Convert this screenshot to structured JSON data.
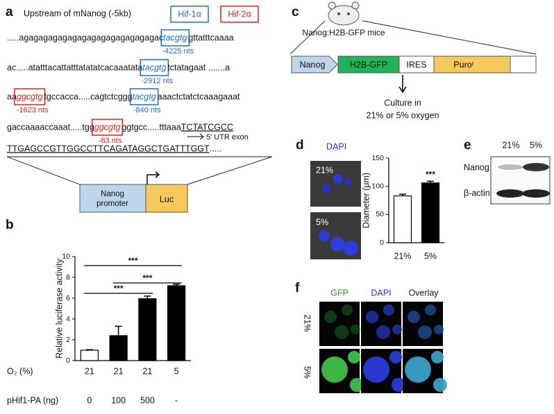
{
  "a": {
    "label": "a",
    "title": "Upstream of mNanog (-5kb)",
    "legend": [
      {
        "name": "Hif-1α",
        "color": "#1f6fc0"
      },
      {
        "name": "Hif-2α",
        "color": "#e02020"
      }
    ],
    "sequence": [
      [
        {
          "text": ".....agagagagagagagagagagagagagagac"
        },
        {
          "text": "tacgtg",
          "site": 0,
          "note": "-4225 nts"
        },
        {
          "text": "gttatttcaaaa"
        }
      ],
      [
        {
          "text": "ac.....atatttacattatttatatatcacaaatata"
        },
        {
          "text": "tacgtg",
          "site": 0,
          "note": "-2912 nts"
        },
        {
          "text": "tctatagaat .......a"
        }
      ],
      [
        {
          "text": "aa"
        },
        {
          "text": "ggcgtg",
          "site": 1,
          "note": "-1623 nts"
        },
        {
          "text": "tgccacca.....cagtctcggg"
        },
        {
          "text": "tacgtg",
          "site": 0,
          "note": "-840 nts"
        },
        {
          "text": "aaactctatctcaaagaaat"
        }
      ],
      [
        {
          "text": "gaccaaaaccaaat.....tgg"
        },
        {
          "text": "ggcgtg",
          "site": 1,
          "note": "-83 nts"
        },
        {
          "text": "ggtgcc.....tttaaa"
        },
        {
          "text": "TCTATCGCC",
          "underline": true
        }
      ],
      [
        {
          "text": "TTGAGCCGTTGGCCTTCAGATAGGCTGATTTGGT",
          "underline": true
        },
        {
          "text": "....."
        }
      ]
    ],
    "utr": "5' UTR exon",
    "promoter": [
      "Nanog",
      "promoter"
    ],
    "reporter": "Luc"
  },
  "c": {
    "label": "c",
    "mice": "Nanog:H2B-GFP mice",
    "construct": [
      "Nanog",
      "H2B-GFP",
      "IRES",
      "Puroʳ"
    ],
    "culture": [
      "Culture in",
      "21% or 5% oxygen"
    ]
  },
  "d": {
    "label": "d",
    "stain": "DAPI",
    "images": [
      "21%",
      "5%"
    ]
  },
  "e": {
    "label": "e",
    "columns": [
      "21%",
      "5%"
    ],
    "rows": [
      "Nanog",
      "β-actin"
    ]
  },
  "f": {
    "label": "f",
    "columns": [
      "GFP",
      "DAPI",
      "Overlay"
    ],
    "rows": [
      "21%",
      "5%"
    ]
  },
  "chart_data": [
    {
      "type": "bar",
      "label": "b",
      "ylabel": "Relative luciferase activity",
      "ylim": [
        0,
        10
      ],
      "yticks": [
        0,
        2,
        4,
        6,
        8,
        10
      ],
      "categories": [
        "21",
        "21",
        "21",
        "5"
      ],
      "x_rows": [
        {
          "name": "O₂ (%)",
          "labels": [
            "21",
            "21",
            "21",
            "5"
          ]
        },
        {
          "name": "pHif1-PA (ng)",
          "labels": [
            "0",
            "100",
            "500",
            "-"
          ]
        }
      ],
      "values": [
        1.0,
        2.4,
        5.95,
        7.2
      ],
      "errors": [
        0.05,
        0.9,
        0.25,
        0.15
      ],
      "colors": [
        "#ffffff",
        "#000000",
        "#000000",
        "#000000"
      ],
      "comparisons": [
        {
          "from": 0,
          "to": 3,
          "label": "***"
        },
        {
          "from": 1,
          "to": 3,
          "label": "***"
        },
        {
          "from": 0,
          "to": 2,
          "label": "***"
        }
      ]
    },
    {
      "type": "bar",
      "ylabel": "Diameter (μm)",
      "ylim": [
        0,
        150
      ],
      "yticks": [
        0,
        50,
        100,
        150
      ],
      "categories": [
        "21%",
        "5%"
      ],
      "values": [
        83,
        106
      ],
      "errors": [
        3,
        3
      ],
      "colors": [
        "#ffffff",
        "#000000"
      ],
      "annotations": [
        {
          "index": 1,
          "label": "***"
        }
      ]
    }
  ]
}
